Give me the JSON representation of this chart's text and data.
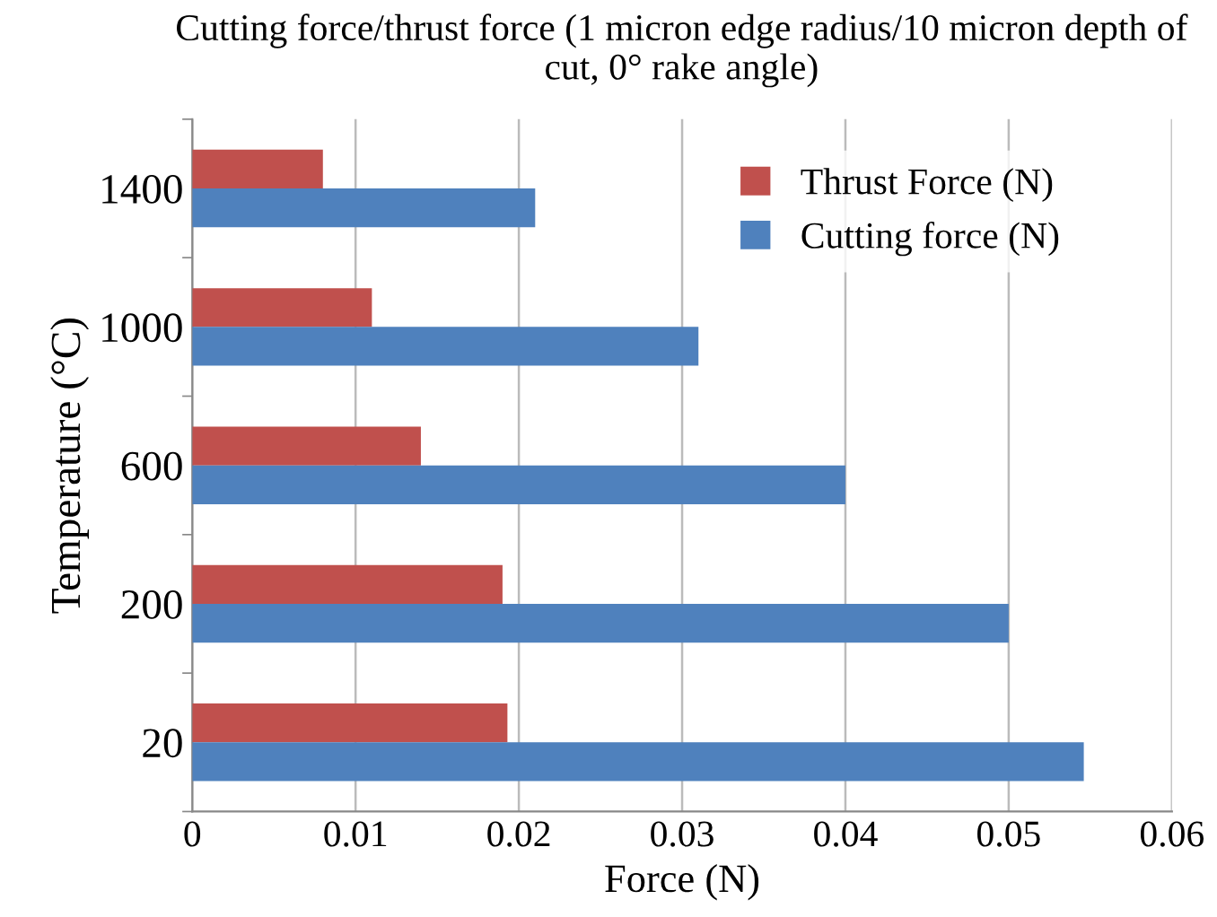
{
  "chart_data": {
    "type": "bar",
    "orientation": "horizontal",
    "title": "Cutting force/thrust force (1 micron edge radius/10 micron depth of cut, 0° rake angle)",
    "xlabel": "Force (N)",
    "ylabel": "Temperature (°C)",
    "categories": [
      "1400",
      "1000",
      "600",
      "200",
      "20"
    ],
    "series": [
      {
        "name": "Thrust Force (N)",
        "color": "#c0504d",
        "values": [
          0.008,
          0.011,
          0.014,
          0.019,
          0.0193
        ]
      },
      {
        "name": "Cutting force (N)",
        "color": "#4f81bd",
        "values": [
          0.021,
          0.031,
          0.04,
          0.05,
          0.0546
        ]
      }
    ],
    "xlim": [
      0,
      0.06
    ],
    "xticks": [
      0,
      0.01,
      0.02,
      0.03,
      0.04,
      0.05,
      0.06
    ],
    "grid": "x",
    "legend": "top right"
  }
}
